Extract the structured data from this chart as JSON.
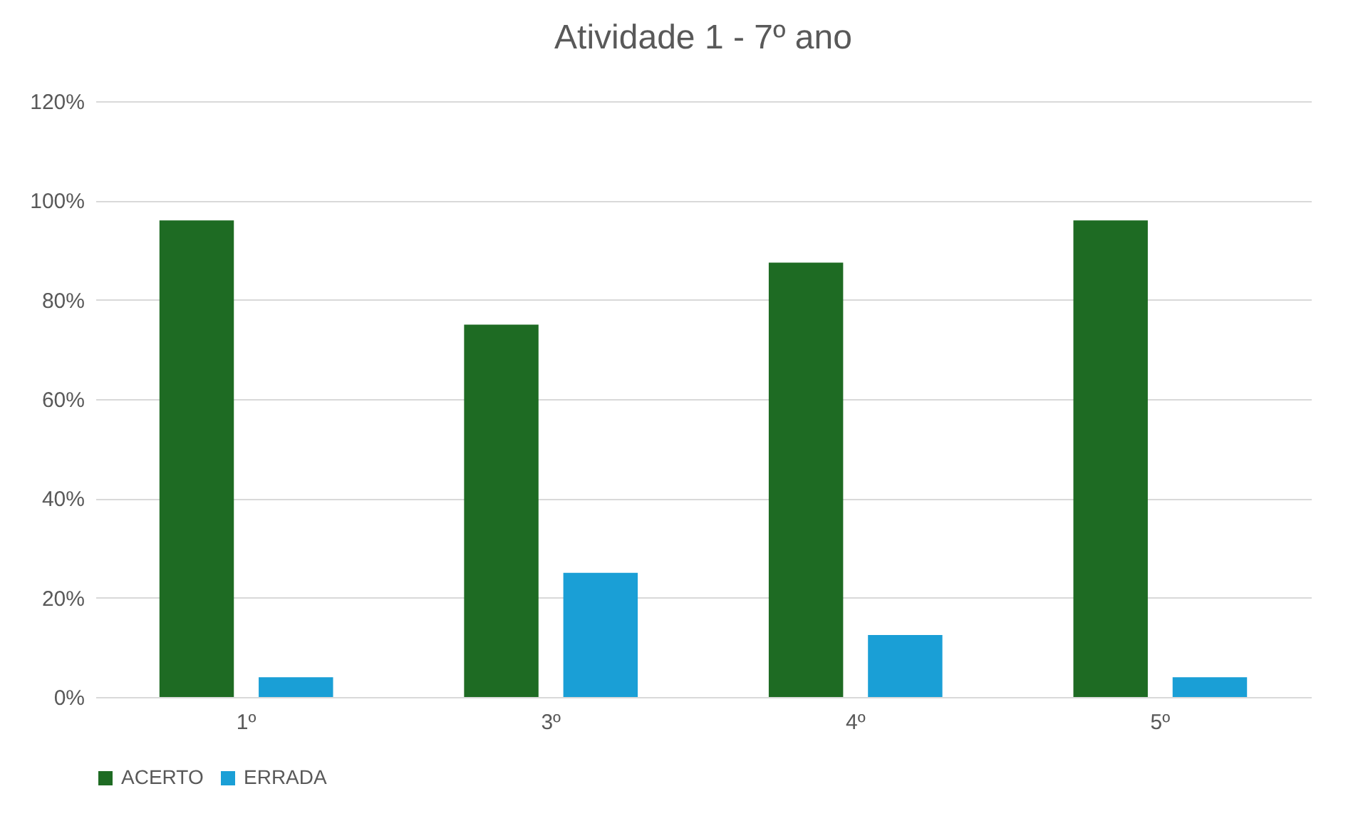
{
  "chart_data": {
    "type": "bar",
    "title": "Atividade 1 - 7º ano",
    "categories": [
      "1º",
      "3º",
      "4º",
      "5º"
    ],
    "series": [
      {
        "name": "ACERTO",
        "color": "#1e6b23",
        "values": [
          96,
          75,
          87.5,
          96
        ]
      },
      {
        "name": "ERRADA",
        "color": "#1a9fd6",
        "values": [
          4,
          25,
          12.5,
          4
        ]
      }
    ],
    "ylim": [
      0,
      120
    ],
    "yticks": [
      {
        "value": 0,
        "label": "0%"
      },
      {
        "value": 20,
        "label": "20%"
      },
      {
        "value": 40,
        "label": "40%"
      },
      {
        "value": 60,
        "label": "60%"
      },
      {
        "value": 80,
        "label": "80%"
      },
      {
        "value": 100,
        "label": "100%"
      },
      {
        "value": 120,
        "label": "120%"
      }
    ],
    "grid": "y",
    "legend": "bottom"
  }
}
